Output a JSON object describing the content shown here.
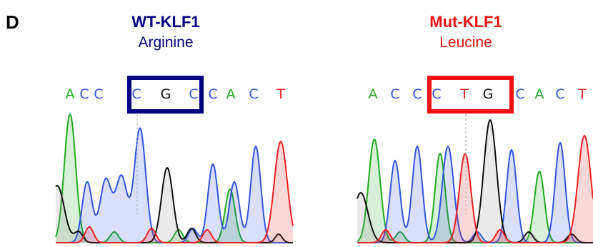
{
  "panel_label": "D",
  "panels": [
    {
      "title": "WT-KLF1",
      "subtitle": "Arginine",
      "bases": [
        "A",
        "C",
        "C",
        "C",
        "G",
        "C",
        "C",
        "A",
        "C",
        "T"
      ]
    },
    {
      "title": "Mut-KLF1",
      "subtitle": "Leucine",
      "bases": [
        "A",
        "C",
        "C",
        "C",
        "T",
        "G",
        "C",
        "A",
        "C",
        "T"
      ]
    }
  ]
}
